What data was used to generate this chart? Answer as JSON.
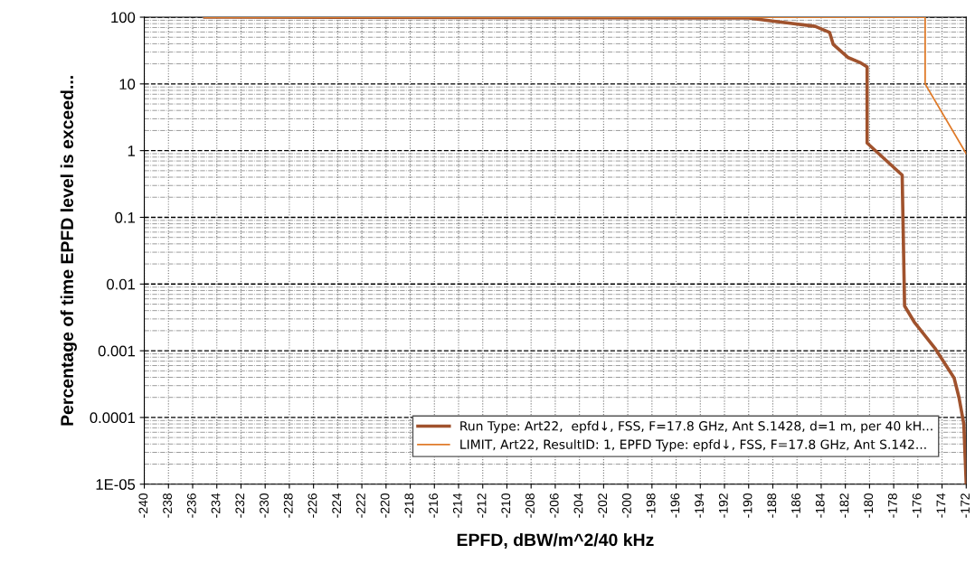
{
  "chart_data": {
    "type": "line",
    "xlabel": "EPFD, dBW/m^2/40 kHz",
    "ylabel": "Percentage of time EPFD level is exceed...",
    "log": "y",
    "xlim": [
      -240,
      -172
    ],
    "xticks": [
      -240,
      -238,
      -236,
      -234,
      -232,
      -230,
      -228,
      -226,
      -224,
      -222,
      -220,
      -218,
      -216,
      -214,
      -212,
      -210,
      -208,
      -206,
      -204,
      -202,
      -200,
      -198,
      -196,
      -194,
      -192,
      -190,
      -188,
      -186,
      -184,
      -182,
      -180,
      -178,
      -176,
      -174,
      -172
    ],
    "ylim": [
      1e-05,
      100
    ],
    "yticks": [
      {
        "value": 100,
        "label": "100"
      },
      {
        "value": 10,
        "label": "10"
      },
      {
        "value": 1,
        "label": "1"
      },
      {
        "value": 0.1,
        "label": "0.1"
      },
      {
        "value": 0.01,
        "label": "0.01"
      },
      {
        "value": 0.001,
        "label": "0.001"
      },
      {
        "value": 0.0001,
        "label": "0.0001"
      },
      {
        "value": 1e-05,
        "label": "1E-05"
      }
    ],
    "grid": true,
    "legend": "bottom right",
    "series": [
      {
        "name": "Run Type: Art22,  epfd↓, FSS, F=17.8 GHz, Ant S.1428, d=1 m, per 40 kH...",
        "color": "#a0522d",
        "x": [
          -235,
          -190,
          -187,
          -184.5,
          -183.3,
          -183.0,
          -181.8,
          -180.8,
          -180.2,
          -180.2,
          -177.3,
          -177.1,
          -176.3,
          -174.6,
          -173.0,
          -172.6,
          -172.2,
          -172
        ],
        "values": [
          100,
          97,
          83,
          73,
          59,
          39,
          25,
          21,
          18,
          1.3,
          0.43,
          0.0047,
          0.0027,
          0.0011,
          0.00039,
          0.0002,
          8e-05,
          1e-05
        ]
      },
      {
        "name": "LIMIT, Art22, ResultID: 1, EPFD Type: epfd↓, FSS, F=17.8 GHz, Ant S.142...",
        "color": "#e07b2a",
        "x": [
          -235,
          -175.4,
          -175.4,
          -172
        ],
        "values": [
          100,
          100,
          10,
          0.9
        ]
      }
    ]
  }
}
